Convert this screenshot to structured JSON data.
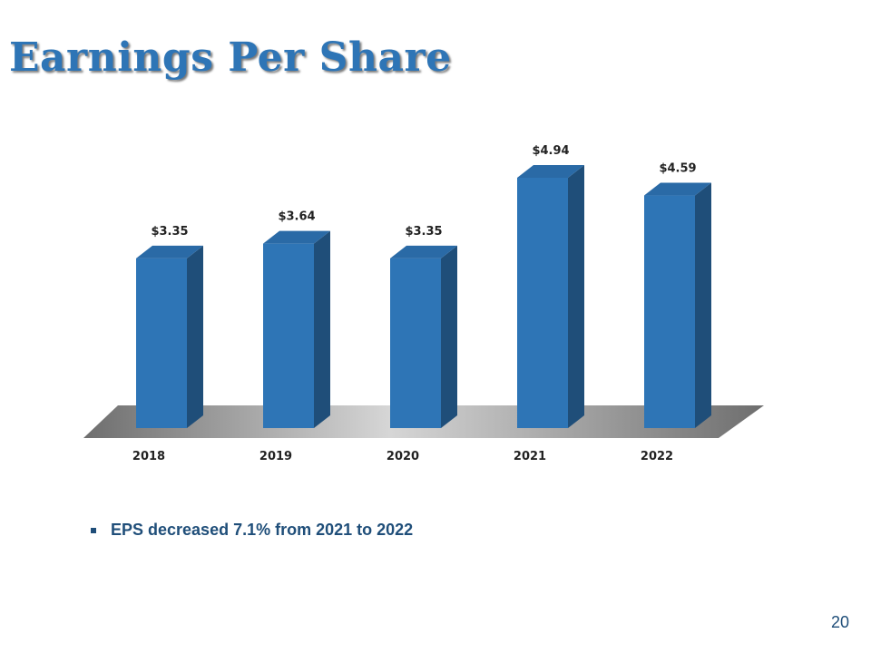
{
  "slide": {
    "title": "Earnings Per Share",
    "page_number": "20",
    "bullets": [
      "EPS decreased 7.1% from 2021 to 2022"
    ]
  },
  "colors": {
    "bar_front": "#2e75b6",
    "bar_side": "#1f4e79",
    "bar_top": "#2a6aa6",
    "title": "#2e75b6",
    "text": "#1f4e79"
  },
  "chart_data": {
    "type": "bar",
    "title": "",
    "xlabel": "",
    "ylabel": "",
    "categories": [
      "2018",
      "2019",
      "2020",
      "2021",
      "2022"
    ],
    "values": [
      3.35,
      3.64,
      3.35,
      4.94,
      4.59
    ],
    "data_labels": [
      "$3.35",
      "$3.64",
      "$3.35",
      "$4.94",
      "$4.59"
    ],
    "ylim": [
      0,
      5.2
    ],
    "grid": false,
    "legend": "none",
    "style": "3d-column"
  }
}
